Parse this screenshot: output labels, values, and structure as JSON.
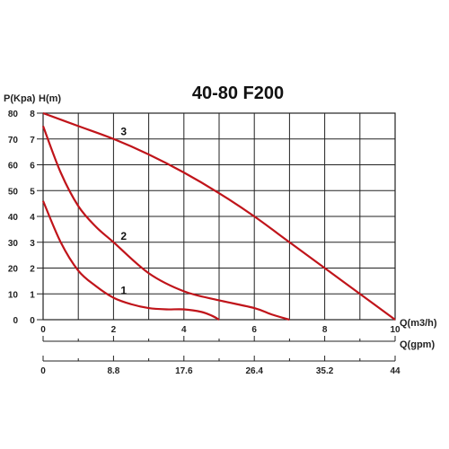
{
  "chart_data": {
    "type": "line",
    "title": "40-80 F200",
    "ylabel_left": "P(Kpa)",
    "ylabel_right": "H(m)",
    "xlabel": "Q(m3/h)",
    "xlabel2": "Q(gpm)",
    "xlim": [
      0,
      10
    ],
    "ylim_kpa": [
      0,
      80
    ],
    "ylim_m": [
      0,
      8
    ],
    "grid": true,
    "x_ticks": [
      "0",
      "2",
      "4",
      "6",
      "8",
      "10"
    ],
    "x2_ticks": [
      "0",
      "8.8",
      "17.6",
      "26.4",
      "35.2",
      "44"
    ],
    "y_kpa_ticks": [
      "0",
      "10",
      "20",
      "30",
      "40",
      "50",
      "60",
      "70",
      "80"
    ],
    "y_m_ticks": [
      "0",
      "1",
      "2",
      "3",
      "4",
      "5",
      "6",
      "7",
      "8"
    ],
    "series": [
      {
        "name": "1",
        "x": [
          0,
          0.5,
          1,
          1.5,
          2,
          2.5,
          3,
          3.5,
          4,
          4.5,
          4.8,
          5.0
        ],
        "y": [
          4.6,
          3.0,
          1.9,
          1.3,
          0.85,
          0.6,
          0.45,
          0.4,
          0.4,
          0.3,
          0.15,
          0.0
        ]
      },
      {
        "name": "2",
        "x": [
          0,
          0.5,
          1,
          1.5,
          2,
          3,
          4,
          5,
          6,
          6.5,
          7.0
        ],
        "y": [
          7.5,
          5.7,
          4.4,
          3.6,
          3.0,
          1.8,
          1.1,
          0.75,
          0.45,
          0.2,
          0.0
        ]
      },
      {
        "name": "3",
        "x": [
          0,
          1,
          2,
          3,
          4,
          5,
          6,
          7,
          8,
          9,
          10
        ],
        "y": [
          8.0,
          7.5,
          7.0,
          6.4,
          5.7,
          4.9,
          4.0,
          3.0,
          2.0,
          1.0,
          0.0
        ]
      }
    ],
    "curve_labels": [
      {
        "text": "1",
        "x": 2.1,
        "y": 1.0
      },
      {
        "text": "2",
        "x": 2.1,
        "y": 3.1
      },
      {
        "text": "3",
        "x": 2.1,
        "y": 7.15
      }
    ],
    "curve_color": "#c0141a"
  }
}
